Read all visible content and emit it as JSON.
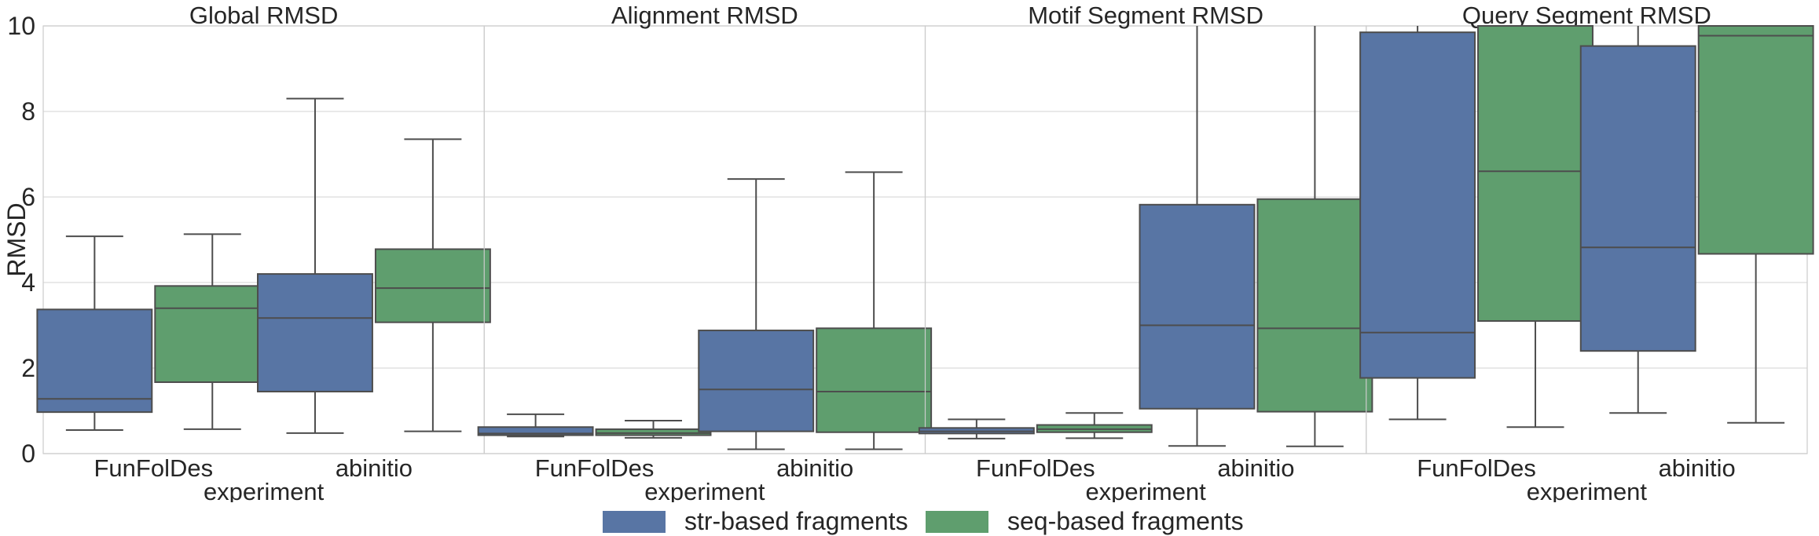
{
  "chart_data": {
    "type": "box",
    "ylabel": "RMSD",
    "ylim": [
      0,
      10
    ],
    "yticks": [
      0,
      2,
      4,
      6,
      8,
      10
    ],
    "grid": true,
    "legend_position": "bottom-center",
    "series": [
      {
        "name": "str-based fragments",
        "color": "#5875a4"
      },
      {
        "name": "seq-based fragments",
        "color": "#5f9e6e"
      }
    ],
    "panels": [
      {
        "title": "Global RMSD",
        "xlabel": "experiment",
        "categories": [
          "FunFolDes",
          "abinitio"
        ],
        "boxes": [
          [
            {
              "whislo": 0.55,
              "q1": 0.97,
              "med": 1.28,
              "q3": 3.37,
              "whishi": 5.08
            },
            {
              "whislo": 0.48,
              "q1": 1.45,
              "med": 3.17,
              "q3": 4.2,
              "whishi": 8.3
            }
          ],
          [
            {
              "whislo": 0.57,
              "q1": 1.67,
              "med": 3.4,
              "q3": 3.92,
              "whishi": 5.13
            },
            {
              "whislo": 0.52,
              "q1": 3.07,
              "med": 3.87,
              "q3": 4.78,
              "whishi": 7.35
            }
          ]
        ]
      },
      {
        "title": "Alignment RMSD",
        "xlabel": "experiment",
        "categories": [
          "FunFolDes",
          "abinitio"
        ],
        "boxes": [
          [
            {
              "whislo": 0.4,
              "q1": 0.43,
              "med": 0.47,
              "q3": 0.62,
              "whishi": 0.92
            },
            {
              "whislo": 0.1,
              "q1": 0.52,
              "med": 1.5,
              "q3": 2.88,
              "whishi": 6.42
            }
          ],
          [
            {
              "whislo": 0.37,
              "q1": 0.43,
              "med": 0.48,
              "q3": 0.57,
              "whishi": 0.77
            },
            {
              "whislo": 0.1,
              "q1": 0.5,
              "med": 1.45,
              "q3": 2.93,
              "whishi": 6.58
            }
          ]
        ]
      },
      {
        "title": "Motif Segment RMSD",
        "xlabel": "experiment",
        "categories": [
          "FunFolDes",
          "abinitio"
        ],
        "boxes": [
          [
            {
              "whislo": 0.35,
              "q1": 0.47,
              "med": 0.52,
              "q3": 0.6,
              "whishi": 0.8
            },
            {
              "whislo": 0.18,
              "q1": 1.05,
              "med": 3.0,
              "q3": 5.82,
              "whishi": 10.5
            }
          ],
          [
            {
              "whislo": 0.36,
              "q1": 0.5,
              "med": 0.57,
              "q3": 0.67,
              "whishi": 0.95
            },
            {
              "whislo": 0.17,
              "q1": 0.98,
              "med": 2.93,
              "q3": 5.95,
              "whishi": 10.5
            }
          ]
        ]
      },
      {
        "title": "Query Segment RMSD",
        "xlabel": "experiment",
        "categories": [
          "FunFolDes",
          "abinitio"
        ],
        "boxes": [
          [
            {
              "whislo": 0.8,
              "q1": 1.77,
              "med": 2.83,
              "q3": 9.85,
              "whishi": 10.5
            },
            {
              "whislo": 0.95,
              "q1": 2.4,
              "med": 4.82,
              "q3": 9.53,
              "whishi": 10.5
            }
          ],
          [
            {
              "whislo": 0.62,
              "q1": 3.1,
              "med": 6.6,
              "q3": 10.5,
              "whishi": 10.5
            },
            {
              "whislo": 0.72,
              "q1": 4.67,
              "med": 9.77,
              "q3": 10.5,
              "whishi": 10.5
            }
          ]
        ]
      }
    ]
  }
}
